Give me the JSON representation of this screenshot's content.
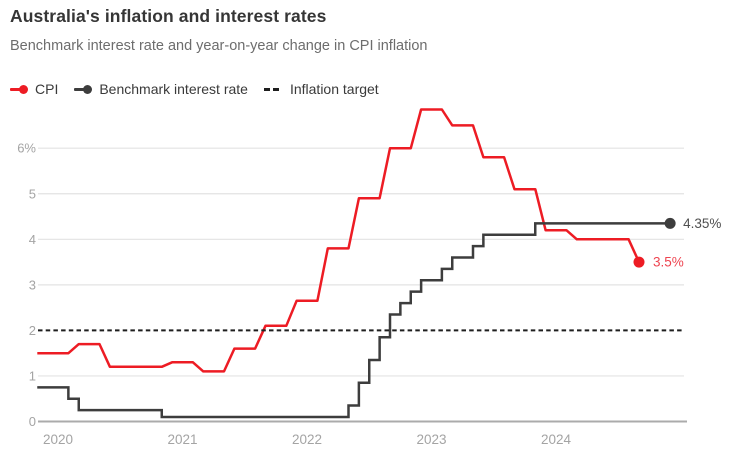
{
  "header": {
    "title": "Australia's inflation and interest rates",
    "subtitle": "Benchmark interest rate and year-on-year change in CPI inflation"
  },
  "legend": {
    "items": [
      {
        "label": "CPI",
        "color": "#ed1c24",
        "marker": "line-dot"
      },
      {
        "label": "Benchmark interest rate",
        "color": "#3d3d3d",
        "marker": "line-dot"
      },
      {
        "label": "Inflation target",
        "color": "#1e1e1e",
        "marker": "dashes"
      }
    ]
  },
  "chart_data": {
    "type": "line",
    "title": "Australia's inflation and interest rates",
    "subtitle": "Benchmark interest rate and year-on-year change in CPI inflation",
    "grid": true,
    "legend_position": "top",
    "x_axis": {
      "ticks": [
        {
          "year": 2020,
          "label": "2020"
        },
        {
          "year": 2021,
          "label": "2021"
        },
        {
          "year": 2022,
          "label": "2022"
        },
        {
          "year": 2023,
          "label": "2023"
        },
        {
          "year": 2024,
          "label": "2024"
        }
      ],
      "range": [
        "2019-11",
        "2025-01"
      ]
    },
    "y_axis": {
      "unit": "%",
      "range": [
        0,
        7
      ],
      "ticks": [
        {
          "v": 0,
          "label": "0"
        },
        {
          "v": 1,
          "label": "1"
        },
        {
          "v": 2,
          "label": "2"
        },
        {
          "v": 3,
          "label": "3"
        },
        {
          "v": 4,
          "label": "4"
        },
        {
          "v": 5,
          "label": "5"
        },
        {
          "v": 6,
          "label": "6%"
        }
      ],
      "grid_values": [
        1,
        3,
        4,
        5,
        6
      ]
    },
    "series": [
      {
        "name": "CPI",
        "style": "line",
        "color": "#ed1c24",
        "end_label": "3.5%",
        "end_label_color": "#ee4450",
        "points": [
          [
            "2019-11",
            1.5
          ],
          [
            "2019-12",
            1.5
          ],
          [
            "2020-01",
            1.5
          ],
          [
            "2020-02",
            1.5
          ],
          [
            "2020-03",
            1.7
          ],
          [
            "2020-04",
            1.7
          ],
          [
            "2020-05",
            1.7
          ],
          [
            "2020-06",
            1.2
          ],
          [
            "2020-07",
            1.2
          ],
          [
            "2020-08",
            1.2
          ],
          [
            "2020-09",
            1.2
          ],
          [
            "2020-10",
            1.2
          ],
          [
            "2020-11",
            1.2
          ],
          [
            "2020-12",
            1.3
          ],
          [
            "2021-01",
            1.3
          ],
          [
            "2021-02",
            1.3
          ],
          [
            "2021-03",
            1.1
          ],
          [
            "2021-04",
            1.1
          ],
          [
            "2021-05",
            1.1
          ],
          [
            "2021-06",
            1.6
          ],
          [
            "2021-07",
            1.6
          ],
          [
            "2021-08",
            1.6
          ],
          [
            "2021-09",
            2.1
          ],
          [
            "2021-10",
            2.1
          ],
          [
            "2021-11",
            2.1
          ],
          [
            "2021-12",
            2.65
          ],
          [
            "2022-01",
            2.65
          ],
          [
            "2022-02",
            2.65
          ],
          [
            "2022-03",
            3.8
          ],
          [
            "2022-04",
            3.8
          ],
          [
            "2022-05",
            3.8
          ],
          [
            "2022-06",
            4.9
          ],
          [
            "2022-07",
            4.9
          ],
          [
            "2022-08",
            4.9
          ],
          [
            "2022-09",
            6.0
          ],
          [
            "2022-10",
            6.0
          ],
          [
            "2022-11",
            6.0
          ],
          [
            "2022-12",
            6.85
          ],
          [
            "2023-01",
            6.85
          ],
          [
            "2023-02",
            6.85
          ],
          [
            "2023-03",
            6.5
          ],
          [
            "2023-04",
            6.5
          ],
          [
            "2023-05",
            6.5
          ],
          [
            "2023-06",
            5.8
          ],
          [
            "2023-07",
            5.8
          ],
          [
            "2023-08",
            5.8
          ],
          [
            "2023-09",
            5.1
          ],
          [
            "2023-10",
            5.1
          ],
          [
            "2023-11",
            5.1
          ],
          [
            "2023-12",
            4.2
          ],
          [
            "2024-01",
            4.2
          ],
          [
            "2024-02",
            4.2
          ],
          [
            "2024-03",
            4.0
          ],
          [
            "2024-04",
            4.0
          ],
          [
            "2024-05",
            4.0
          ],
          [
            "2024-06",
            4.0
          ],
          [
            "2024-07",
            4.0
          ],
          [
            "2024-08",
            4.0
          ],
          [
            "2024-09",
            3.5
          ]
        ]
      },
      {
        "name": "Benchmark interest rate",
        "style": "step",
        "color": "#3d3d3d",
        "end_label": "4.35%",
        "end_label_color": "#4f4f4f",
        "points": [
          [
            "2019-11",
            0.75
          ],
          [
            "2020-02",
            0.5
          ],
          [
            "2020-03",
            0.25
          ],
          [
            "2020-11",
            0.1
          ],
          [
            "2022-05",
            0.35
          ],
          [
            "2022-06",
            0.85
          ],
          [
            "2022-07",
            1.35
          ],
          [
            "2022-08",
            1.85
          ],
          [
            "2022-09",
            2.35
          ],
          [
            "2022-10",
            2.6
          ],
          [
            "2022-11",
            2.85
          ],
          [
            "2022-12",
            3.1
          ],
          [
            "2023-02",
            3.35
          ],
          [
            "2023-03",
            3.6
          ],
          [
            "2023-05",
            3.85
          ],
          [
            "2023-06",
            4.1
          ],
          [
            "2023-11",
            4.35
          ],
          [
            "2024-12",
            4.35
          ]
        ]
      },
      {
        "name": "Inflation target",
        "style": "dashed-reference",
        "color": "#1e1e1e",
        "value": 2
      }
    ]
  }
}
